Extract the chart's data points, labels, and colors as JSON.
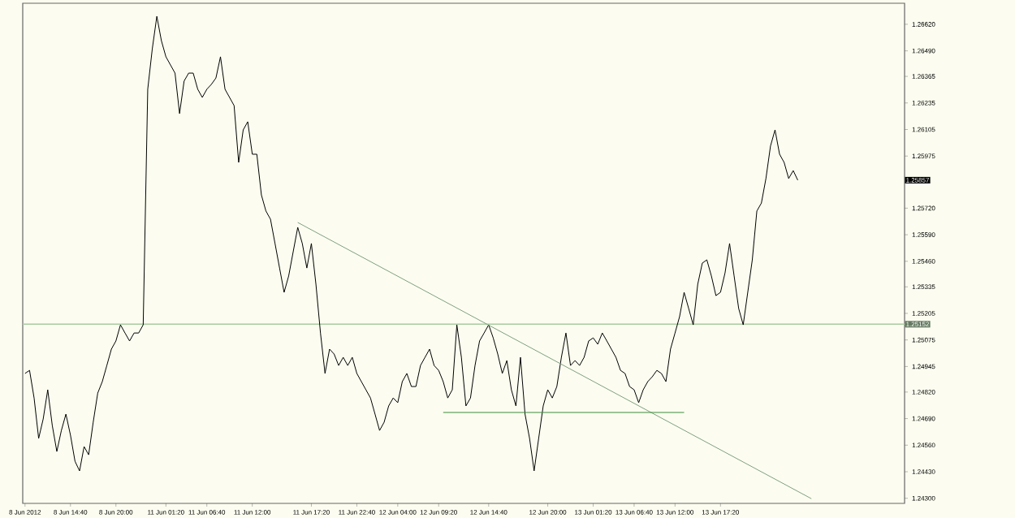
{
  "chart_data": {
    "type": "line",
    "categories": [
      "8 Jun 2012",
      null,
      null,
      null,
      null,
      null,
      null,
      null,
      null,
      null,
      "8 Jun 14:40",
      null,
      null,
      null,
      null,
      null,
      null,
      null,
      null,
      null,
      "8 Jun 20:00",
      null,
      null,
      null,
      null,
      null,
      null,
      null,
      null,
      null,
      null,
      "11 Jun 01:20",
      null,
      null,
      null,
      null,
      null,
      null,
      null,
      null,
      "11 Jun 06:40",
      null,
      null,
      null,
      null,
      null,
      null,
      null,
      null,
      null,
      "11 Jun 12:00",
      null,
      null,
      null,
      null,
      null,
      null,
      null,
      null,
      null,
      null,
      null,
      null,
      "11 Jun 17:20",
      null,
      null,
      null,
      null,
      null,
      null,
      null,
      null,
      null,
      "11 Jun 22:40",
      null,
      null,
      null,
      null,
      null,
      null,
      null,
      null,
      "12 Jun 04:00",
      null,
      null,
      null,
      null,
      null,
      null,
      null,
      null,
      "12 Jun 09:20",
      null,
      null,
      null,
      null,
      null,
      null,
      null,
      null,
      null,
      null,
      "12 Jun 14:40",
      null,
      null,
      null,
      null,
      null,
      null,
      null,
      null,
      null,
      null,
      null,
      null,
      "12 Jun 20:00",
      null,
      null,
      null,
      null,
      null,
      null,
      null,
      null,
      null,
      "13 Jun 01:20",
      null,
      null,
      null,
      null,
      null,
      null,
      null,
      null,
      "13 Jun 06:40",
      null,
      null,
      null,
      null,
      null,
      null,
      null,
      null,
      "13 Jun 12:00",
      null,
      null,
      null,
      null,
      null,
      null,
      null,
      null,
      null,
      "13 Jun 17:20",
      null,
      null,
      null,
      null,
      null,
      null,
      null,
      null,
      null,
      null,
      null,
      null,
      null,
      null,
      null,
      null,
      null,
      null,
      null,
      null,
      null,
      null,
      null,
      null,
      null,
      null,
      null,
      null,
      null,
      null,
      null,
      null,
      null,
      null,
      null,
      null,
      null,
      null,
      null,
      null
    ],
    "series": [
      {
        "color": "#000000",
        "values": [
          1.24911,
          1.24926,
          1.24791,
          1.24593,
          1.24688,
          1.24831,
          1.24656,
          1.24529,
          1.24632,
          1.24712,
          1.24609,
          1.24481,
          1.24434,
          1.24553,
          1.24513,
          1.24672,
          1.24815,
          1.24871,
          1.2495,
          1.2503,
          1.2507,
          1.25149,
          1.25109,
          1.2507,
          1.25109,
          1.25109,
          1.25149,
          1.26302,
          1.265,
          1.26659,
          1.2654,
          1.26461,
          1.26421,
          1.26381,
          1.26183,
          1.26342,
          1.26381,
          1.26381,
          1.26302,
          1.26262,
          1.26302,
          1.26326,
          1.26357,
          1.26461,
          1.26302,
          1.26262,
          1.26222,
          1.25944,
          1.26103,
          1.26143,
          1.25984,
          1.25984,
          1.25785,
          1.25706,
          1.25666,
          1.25547,
          1.25427,
          1.25308,
          1.25388,
          1.25507,
          1.25626,
          1.25547,
          1.25427,
          1.25547,
          1.25348,
          1.25109,
          1.24911,
          1.2503,
          1.25006,
          1.2495,
          1.2499,
          1.2495,
          1.2499,
          1.24911,
          1.24871,
          1.24831,
          1.24791,
          1.24712,
          1.24632,
          1.24672,
          1.24752,
          1.24791,
          1.24768,
          1.24871,
          1.24911,
          1.24847,
          1.24847,
          1.2495,
          1.2499,
          1.2503,
          1.2495,
          1.24926,
          1.24871,
          1.24791,
          1.24831,
          1.25149,
          1.2499,
          1.24752,
          1.24791,
          1.2495,
          1.2507,
          1.25109,
          1.25149,
          1.25085,
          1.25006,
          1.24911,
          1.24974,
          1.24831,
          1.24752,
          1.2499,
          1.24712,
          1.24593,
          1.24434,
          1.24593,
          1.24752,
          1.24831,
          1.24791,
          1.24847,
          1.2499,
          1.25109,
          1.2495,
          1.24974,
          1.2495,
          1.2499,
          1.2507,
          1.25085,
          1.25054,
          1.25109,
          1.2507,
          1.2503,
          1.2499,
          1.24926,
          1.24911,
          1.24847,
          1.24831,
          1.24768,
          1.24831,
          1.24871,
          1.24895,
          1.24926,
          1.24911,
          1.24871,
          1.2503,
          1.25109,
          1.25189,
          1.25308,
          1.25229,
          1.25149,
          1.25348,
          1.25451,
          1.25467,
          1.25388,
          1.25292,
          1.25308,
          1.25403,
          1.25547,
          1.25388,
          1.25229,
          1.25149,
          1.25308,
          1.25467,
          1.25706,
          1.25745,
          1.25865,
          1.26024,
          1.26103,
          1.25984,
          1.25944,
          1.25865,
          1.25904,
          1.25857,
          null,
          null,
          null,
          null,
          null,
          null,
          null,
          null,
          null,
          null,
          null,
          null,
          null,
          null,
          null,
          null,
          null,
          null,
          null,
          null,
          null,
          null,
          null
        ]
      },
      {
        "color": "#7f9f7f",
        "values": [
          null,
          null,
          null,
          null,
          null,
          null,
          null,
          null,
          null,
          null,
          null,
          null,
          null,
          null,
          null,
          null,
          null,
          null,
          null,
          null,
          null,
          null,
          null,
          null,
          null,
          null,
          null,
          null,
          null,
          null,
          null,
          null,
          null,
          null,
          null,
          null,
          null,
          null,
          null,
          null,
          null,
          null,
          null,
          null,
          null,
          null,
          null,
          null,
          null,
          null,
          null,
          null,
          null,
          null,
          null,
          null,
          null,
          null,
          null,
          null,
          1.2565,
          null,
          null,
          null,
          null,
          null,
          null,
          null,
          null,
          null,
          null,
          null,
          null,
          null,
          null,
          null,
          null,
          null,
          null,
          null,
          null,
          null,
          null,
          null,
          null,
          null,
          null,
          null,
          null,
          null,
          null,
          null,
          null,
          null,
          null,
          null,
          null,
          null,
          null,
          null,
          null,
          null,
          null,
          null,
          null,
          null,
          null,
          null,
          null,
          null,
          null,
          null,
          null,
          null,
          null,
          null,
          null,
          null,
          null,
          null,
          null,
          null,
          null,
          null,
          null,
          null,
          null,
          null,
          null,
          null,
          null,
          null,
          null,
          null,
          null,
          null,
          null,
          null,
          null,
          null,
          null,
          null,
          null,
          null,
          null,
          null,
          null,
          null,
          null,
          null,
          null,
          null,
          null,
          null,
          null,
          null,
          null,
          null,
          null,
          null,
          null,
          null,
          null,
          null,
          null,
          null,
          null,
          null,
          null,
          null,
          null,
          null,
          null,
          1.24298,
          null,
          null,
          null,
          null,
          null,
          null,
          null,
          null,
          null,
          null,
          null,
          null,
          null,
          null,
          null,
          null,
          null,
          null,
          null,
          null
        ]
      },
      {
        "color": "#3c8c3c",
        "values": [
          null,
          null,
          null,
          null,
          null,
          null,
          null,
          null,
          null,
          null,
          null,
          null,
          null,
          null,
          null,
          null,
          null,
          null,
          null,
          null,
          null,
          null,
          null,
          null,
          null,
          null,
          null,
          null,
          null,
          null,
          null,
          null,
          null,
          null,
          null,
          null,
          null,
          null,
          null,
          null,
          null,
          null,
          null,
          null,
          null,
          null,
          null,
          null,
          null,
          null,
          null,
          null,
          null,
          null,
          null,
          null,
          null,
          null,
          null,
          null,
          null,
          null,
          null,
          null,
          null,
          null,
          null,
          null,
          null,
          null,
          null,
          null,
          null,
          null,
          null,
          null,
          null,
          null,
          null,
          null,
          null,
          null,
          null,
          null,
          null,
          null,
          null,
          null,
          null,
          null,
          null,
          null,
          1.2472,
          null,
          null,
          null,
          null,
          null,
          null,
          null,
          null,
          null,
          null,
          null,
          null,
          null,
          null,
          null,
          null,
          null,
          null,
          null,
          null,
          null,
          null,
          null,
          null,
          null,
          null,
          null,
          null,
          null,
          null,
          null,
          null,
          null,
          null,
          null,
          null,
          null,
          null,
          null,
          null,
          null,
          null,
          null,
          null,
          null,
          null,
          null,
          null,
          null,
          null,
          null,
          null,
          1.2472,
          null,
          null,
          null,
          null,
          null,
          null,
          null,
          null,
          null,
          null,
          null,
          null,
          null,
          null,
          null,
          null,
          null,
          null,
          null,
          null,
          null,
          null,
          null,
          null,
          null,
          null,
          null,
          null,
          null,
          null,
          null,
          null,
          null,
          null,
          null,
          null,
          null,
          null,
          null,
          null,
          null,
          null,
          null,
          null,
          null,
          null,
          null,
          null
        ]
      }
    ],
    "ylim": [
      1.24275,
      1.26723
    ],
    "yticks": [
      {
        "value": 1.2662,
        "label": "1.26620"
      },
      {
        "value": 1.2649,
        "label": "1.26490"
      },
      {
        "value": 1.26365,
        "label": "1.26365"
      },
      {
        "value": 1.26235,
        "label": "1.26235"
      },
      {
        "value": 1.26105,
        "label": "1.26105"
      },
      {
        "value": 1.25975,
        "label": "1.25975"
      },
      {
        "value": 1.2572,
        "label": "1.25720"
      },
      {
        "value": 1.2559,
        "label": "1.25590"
      },
      {
        "value": 1.2546,
        "label": "1.25460"
      },
      {
        "value": 1.25335,
        "label": "1.25335"
      },
      {
        "value": 1.25205,
        "label": "1.25205"
      },
      {
        "value": 1.25075,
        "label": "1.25075"
      },
      {
        "value": 1.24945,
        "label": "1.24945"
      },
      {
        "value": 1.2482,
        "label": "1.24820"
      },
      {
        "value": 1.2469,
        "label": "1.24690"
      },
      {
        "value": 1.2456,
        "label": "1.24560"
      },
      {
        "value": 1.2443,
        "label": "1.24430"
      },
      {
        "value": 1.243,
        "label": "1.24300"
      }
    ],
    "ref_lines": [
      {
        "axis": "y",
        "value": 1.25152,
        "label": "1.25152",
        "color": "#a8cca0"
      }
    ],
    "annotations": [
      "1.25857"
    ]
  }
}
